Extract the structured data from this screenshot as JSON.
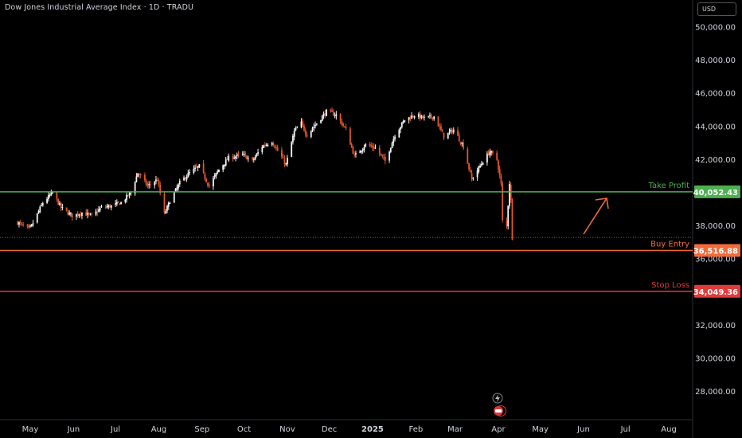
{
  "header": {
    "title": "Dow Jones Industrial Average Index · 1D · TRADU",
    "currency": "USD"
  },
  "colors": {
    "background": "#000000",
    "up_candle": "#f5f5f5",
    "down_candle": "#e4562b",
    "take_profit": "#4caf50",
    "buy_entry": "#f26b3a",
    "stop_loss": "#e03c3c",
    "arrow": "#f26b3a"
  },
  "icons": {
    "lightning": "lightning-icon",
    "earnings": "earnings-icon"
  },
  "chart_data": {
    "type": "candlestick",
    "title": "Dow Jones Industrial Average Index · 1D · TRADU",
    "ylim": [
      26500,
      51000
    ],
    "y_ticks": [
      28000,
      30000,
      32000,
      34000,
      36000,
      38000,
      40000,
      42000,
      44000,
      46000,
      48000,
      50000
    ],
    "y_tick_labels": [
      "28,000.00",
      "30,000.00",
      "32,000.00",
      "34,000.00",
      "36,000.00",
      "38,000.00",
      "40,000.00",
      "42,000.00",
      "44,000.00",
      "46,000.00",
      "48,000.00",
      "50,000.00"
    ],
    "x_ticks": [
      "May",
      "Jun",
      "Jul",
      "Aug",
      "Sep",
      "Oct",
      "Nov",
      "Dec",
      "2025",
      "Feb",
      "Mar",
      "Apr",
      "May",
      "Jun",
      "Jul",
      "Aug"
    ],
    "last_price": 37300,
    "levels": [
      {
        "name": "Take Profit",
        "value": 40052.43,
        "label": "40,052.43",
        "color": "#4caf50"
      },
      {
        "name": "Buy Entry",
        "value": 36516.88,
        "label": "36,516.88",
        "color": "#f26b3a"
      },
      {
        "name": "Stop Loss",
        "value": 34049.36,
        "label": "34,049.36",
        "color": "#e03c3c"
      }
    ],
    "close_path": [
      [
        "2024-04-22",
        38200
      ],
      [
        "2024-04-30",
        37800
      ],
      [
        "2024-05-02",
        38000
      ],
      [
        "2024-05-10",
        39400
      ],
      [
        "2024-05-17",
        40000
      ],
      [
        "2024-05-23",
        39100
      ],
      [
        "2024-05-31",
        38600
      ],
      [
        "2024-06-07",
        38800
      ],
      [
        "2024-06-14",
        38600
      ],
      [
        "2024-06-21",
        39100
      ],
      [
        "2024-06-28",
        39200
      ],
      [
        "2024-07-05",
        39400
      ],
      [
        "2024-07-12",
        40000
      ],
      [
        "2024-07-17",
        41200
      ],
      [
        "2024-07-24",
        40400
      ],
      [
        "2024-07-31",
        40800
      ],
      [
        "2024-08-05",
        38700
      ],
      [
        "2024-08-09",
        39500
      ],
      [
        "2024-08-16",
        40600
      ],
      [
        "2024-08-23",
        41200
      ],
      [
        "2024-08-30",
        41600
      ],
      [
        "2024-09-06",
        40400
      ],
      [
        "2024-09-13",
        41400
      ],
      [
        "2024-09-20",
        42100
      ],
      [
        "2024-09-30",
        42300
      ],
      [
        "2024-10-07",
        41900
      ],
      [
        "2024-10-14",
        42800
      ],
      [
        "2024-10-21",
        43100
      ],
      [
        "2024-10-31",
        41700
      ],
      [
        "2024-11-06",
        43700
      ],
      [
        "2024-11-11",
        44200
      ],
      [
        "2024-11-15",
        43500
      ],
      [
        "2024-11-22",
        44200
      ],
      [
        "2024-11-29",
        44900
      ],
      [
        "2024-12-06",
        44700
      ],
      [
        "2024-12-13",
        43800
      ],
      [
        "2024-12-19",
        42200
      ],
      [
        "2024-12-27",
        42900
      ],
      [
        "2025-01-03",
        42700
      ],
      [
        "2025-01-10",
        41900
      ],
      [
        "2025-01-17",
        43500
      ],
      [
        "2025-01-24",
        44400
      ],
      [
        "2025-01-31",
        44700
      ],
      [
        "2025-02-07",
        44500
      ],
      [
        "2025-02-14",
        44600
      ],
      [
        "2025-02-21",
        43400
      ],
      [
        "2025-02-28",
        43800
      ],
      [
        "2025-03-07",
        42800
      ],
      [
        "2025-03-13",
        40800
      ],
      [
        "2025-03-21",
        41900
      ],
      [
        "2025-03-26",
        42500
      ],
      [
        "2025-03-31",
        42000
      ],
      [
        "2025-04-03",
        40500
      ],
      [
        "2025-04-04",
        38300
      ],
      [
        "2025-04-07",
        37960
      ],
      [
        "2025-04-09",
        40600
      ],
      [
        "2025-04-10",
        39500
      ],
      [
        "2025-04-11",
        37300
      ]
    ]
  }
}
